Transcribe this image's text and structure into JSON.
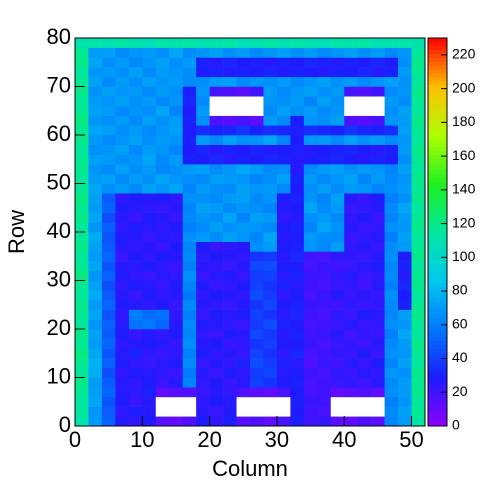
{
  "chart_data": {
    "type": "heatmap",
    "xlabel": "Column",
    "ylabel": "Row",
    "xlim": [
      0,
      52
    ],
    "ylim": [
      0,
      80
    ],
    "xticks": [
      0,
      10,
      20,
      30,
      40,
      50
    ],
    "yticks": [
      0,
      10,
      20,
      30,
      40,
      50,
      60,
      70,
      80
    ],
    "zlim": [
      0,
      230
    ],
    "zticks": [
      0,
      20,
      40,
      60,
      80,
      100,
      120,
      140,
      160,
      180,
      200,
      220
    ],
    "colorscale": [
      "#9000ff",
      "#1c1cff",
      "#0078ff",
      "#00c8f0",
      "#00e8a0",
      "#20f020",
      "#b0ff00",
      "#ffc000",
      "#ff0000"
    ],
    "xbins": [
      0,
      2,
      4,
      6,
      8,
      10,
      12,
      14,
      16,
      18,
      20,
      22,
      24,
      26,
      28,
      30,
      32,
      34,
      36,
      38,
      40,
      42,
      44,
      46,
      48,
      50,
      52
    ],
    "ybins": [
      0,
      2,
      4,
      6,
      8,
      10,
      12,
      14,
      16,
      18,
      20,
      22,
      24,
      26,
      28,
      30,
      32,
      34,
      36,
      38,
      40,
      42,
      44,
      46,
      48,
      50,
      52,
      54,
      56,
      58,
      60,
      62,
      64,
      66,
      68,
      70,
      72,
      74,
      76,
      78,
      80
    ],
    "z": [
      [
        112,
        70,
        50,
        26,
        24,
        28,
        14,
        12,
        16,
        28,
        24,
        30,
        14,
        16,
        12,
        18,
        30,
        20,
        22,
        14,
        12,
        16,
        14,
        62,
        70,
        114
      ],
      [
        116,
        68,
        48,
        24,
        28,
        26,
        0,
        0,
        0,
        26,
        22,
        28,
        0,
        0,
        0,
        0,
        28,
        20,
        18,
        0,
        0,
        0,
        0,
        64,
        72,
        118
      ],
      [
        114,
        74,
        46,
        28,
        22,
        26,
        0,
        0,
        0,
        24,
        28,
        26,
        0,
        0,
        0,
        0,
        30,
        22,
        20,
        0,
        0,
        0,
        0,
        60,
        68,
        116
      ],
      [
        118,
        72,
        52,
        26,
        24,
        30,
        12,
        14,
        16,
        22,
        26,
        24,
        16,
        14,
        12,
        18,
        28,
        18,
        20,
        12,
        14,
        16,
        12,
        66,
        70,
        120
      ],
      [
        120,
        70,
        48,
        26,
        24,
        28,
        22,
        26,
        62,
        24,
        28,
        22,
        26,
        40,
        36,
        28,
        30,
        18,
        20,
        22,
        24,
        20,
        26,
        64,
        70,
        118
      ],
      [
        116,
        76,
        44,
        24,
        28,
        26,
        24,
        22,
        58,
        26,
        22,
        28,
        24,
        38,
        42,
        26,
        28,
        20,
        18,
        24,
        22,
        26,
        24,
        68,
        66,
        120
      ],
      [
        118,
        78,
        50,
        28,
        24,
        22,
        26,
        28,
        64,
        22,
        26,
        24,
        30,
        44,
        38,
        30,
        26,
        16,
        22,
        20,
        26,
        22,
        28,
        62,
        72,
        116
      ],
      [
        122,
        74,
        46,
        26,
        30,
        24,
        22,
        24,
        60,
        28,
        24,
        26,
        22,
        40,
        36,
        24,
        32,
        18,
        20,
        24,
        22,
        28,
        22,
        66,
        68,
        118
      ],
      [
        118,
        70,
        52,
        24,
        26,
        28,
        26,
        22,
        66,
        26,
        28,
        22,
        24,
        36,
        40,
        28,
        28,
        22,
        18,
        22,
        24,
        20,
        26,
        64,
        70,
        120
      ],
      [
        120,
        72,
        48,
        28,
        22,
        26,
        24,
        28,
        62,
        24,
        22,
        28,
        26,
        42,
        38,
        26,
        30,
        20,
        22,
        26,
        20,
        24,
        22,
        60,
        74,
        116
      ],
      [
        116,
        68,
        50,
        26,
        56,
        58,
        52,
        26,
        64,
        28,
        26,
        24,
        22,
        38,
        44,
        30,
        28,
        18,
        20,
        22,
        26,
        22,
        24,
        66,
        68,
        118
      ],
      [
        118,
        74,
        46,
        24,
        60,
        54,
        56,
        24,
        60,
        22,
        28,
        26,
        28,
        40,
        36,
        26,
        32,
        20,
        18,
        24,
        22,
        28,
        26,
        62,
        72,
        120
      ],
      [
        120,
        70,
        52,
        28,
        26,
        24,
        28,
        22,
        64,
        26,
        24,
        22,
        26,
        36,
        42,
        28,
        30,
        22,
        20,
        20,
        24,
        22,
        24,
        64,
        30,
        118
      ],
      [
        116,
        76,
        48,
        26,
        22,
        28,
        24,
        26,
        58,
        24,
        28,
        26,
        24,
        44,
        38,
        24,
        28,
        18,
        22,
        26,
        22,
        26,
        22,
        66,
        28,
        116
      ],
      [
        118,
        72,
        44,
        24,
        28,
        26,
        22,
        28,
        62,
        28,
        22,
        24,
        28,
        40,
        36,
        30,
        26,
        20,
        18,
        22,
        24,
        20,
        26,
        60,
        32,
        120
      ],
      [
        122,
        68,
        50,
        28,
        24,
        22,
        26,
        24,
        66,
        22,
        26,
        28,
        22,
        38,
        40,
        26,
        30,
        22,
        20,
        24,
        26,
        22,
        24,
        64,
        26,
        118
      ],
      [
        118,
        74,
        46,
        26,
        26,
        28,
        24,
        22,
        60,
        26,
        24,
        22,
        26,
        42,
        44,
        28,
        28,
        18,
        22,
        20,
        22,
        26,
        28,
        62,
        30,
        116
      ],
      [
        116,
        70,
        52,
        22,
        28,
        24,
        28,
        26,
        64,
        24,
        28,
        26,
        24,
        36,
        38,
        26,
        32,
        20,
        18,
        24,
        24,
        22,
        26,
        66,
        28,
        120
      ],
      [
        120,
        72,
        48,
        26,
        24,
        26,
        22,
        28,
        62,
        28,
        22,
        24,
        26,
        66,
        70,
        28,
        30,
        68,
        64,
        72,
        24,
        26,
        22,
        64,
        70,
        118
      ],
      [
        118,
        76,
        46,
        28,
        26,
        22,
        26,
        24,
        66,
        70,
        64,
        72,
        68,
        62,
        74,
        26,
        28,
        70,
        66,
        64,
        22,
        24,
        26,
        60,
        72,
        116
      ],
      [
        116,
        68,
        50,
        24,
        28,
        26,
        24,
        28,
        60,
        64,
        72,
        66,
        70,
        68,
        64,
        28,
        30,
        62,
        74,
        68,
        26,
        22,
        24,
        66,
        68,
        120
      ],
      [
        120,
        74,
        44,
        26,
        22,
        28,
        26,
        22,
        64,
        68,
        66,
        74,
        62,
        72,
        70,
        24,
        26,
        66,
        70,
        64,
        24,
        28,
        22,
        62,
        70,
        118
      ],
      [
        118,
        70,
        52,
        28,
        26,
        24,
        22,
        26,
        62,
        72,
        70,
        64,
        68,
        66,
        62,
        26,
        28,
        74,
        64,
        70,
        22,
        24,
        26,
        64,
        74,
        116
      ],
      [
        122,
        72,
        48,
        24,
        28,
        26,
        28,
        24,
        66,
        66,
        64,
        70,
        72,
        64,
        68,
        28,
        30,
        68,
        62,
        72,
        26,
        22,
        28,
        60,
        66,
        120
      ],
      [
        118,
        74,
        66,
        70,
        64,
        72,
        68,
        74,
        62,
        70,
        66,
        64,
        72,
        68,
        70,
        64,
        28,
        66,
        72,
        64,
        70,
        68,
        62,
        66,
        70,
        118
      ],
      [
        116,
        70,
        72,
        64,
        70,
        66,
        74,
        68,
        66,
        64,
        72,
        70,
        68,
        62,
        66,
        72,
        30,
        70,
        64,
        68,
        74,
        62,
        70,
        64,
        68,
        120
      ],
      [
        120,
        68,
        64,
        72,
        66,
        70,
        62,
        66,
        70,
        72,
        64,
        68,
        74,
        70,
        64,
        66,
        26,
        64,
        70,
        72,
        66,
        70,
        68,
        62,
        72,
        116
      ],
      [
        118,
        72,
        70,
        66,
        68,
        74,
        64,
        70,
        30,
        28,
        32,
        26,
        30,
        28,
        32,
        30,
        26,
        28,
        30,
        32,
        28,
        26,
        30,
        28,
        66,
        118
      ],
      [
        116,
        66,
        68,
        72,
        64,
        70,
        68,
        62,
        28,
        32,
        26,
        30,
        28,
        32,
        26,
        28,
        30,
        26,
        28,
        30,
        32,
        28,
        26,
        30,
        70,
        120
      ],
      [
        120,
        70,
        64,
        68,
        72,
        66,
        70,
        68,
        30,
        70,
        64,
        72,
        66,
        68,
        74,
        62,
        28,
        68,
        70,
        64,
        72,
        66,
        70,
        64,
        68,
        116
      ],
      [
        118,
        74,
        72,
        66,
        70,
        64,
        68,
        72,
        28,
        34,
        30,
        32,
        36,
        30,
        34,
        32,
        30,
        34,
        32,
        30,
        36,
        32,
        30,
        34,
        72,
        118
      ],
      [
        122,
        68,
        66,
        70,
        64,
        72,
        66,
        70,
        30,
        66,
        16,
        14,
        18,
        12,
        70,
        64,
        28,
        68,
        66,
        72,
        16,
        14,
        18,
        68,
        70,
        120
      ],
      [
        118,
        72,
        70,
        64,
        68,
        66,
        74,
        62,
        28,
        70,
        0,
        0,
        0,
        0,
        64,
        72,
        66,
        70,
        64,
        68,
        0,
        0,
        0,
        66,
        72,
        116
      ],
      [
        116,
        70,
        68,
        72,
        66,
        70,
        64,
        68,
        32,
        64,
        0,
        0,
        0,
        0,
        68,
        66,
        70,
        62,
        72,
        66,
        0,
        0,
        0,
        70,
        64,
        118
      ],
      [
        120,
        66,
        72,
        68,
        70,
        64,
        70,
        66,
        30,
        68,
        18,
        16,
        14,
        20,
        70,
        64,
        68,
        72,
        66,
        70,
        18,
        16,
        20,
        64,
        68,
        120
      ],
      [
        118,
        72,
        64,
        70,
        66,
        72,
        68,
        70,
        64,
        66,
        70,
        72,
        64,
        68,
        66,
        70,
        64,
        68,
        72,
        66,
        70,
        64,
        68,
        72,
        66,
        116
      ],
      [
        116,
        68,
        70,
        66,
        72,
        64,
        70,
        68,
        66,
        28,
        30,
        26,
        30,
        28,
        32,
        26,
        30,
        28,
        26,
        30,
        28,
        32,
        26,
        30,
        70,
        118
      ],
      [
        120,
        74,
        66,
        70,
        64,
        68,
        72,
        66,
        70,
        30,
        26,
        32,
        28,
        30,
        26,
        30,
        28,
        32,
        30,
        26,
        30,
        28,
        32,
        28,
        66,
        120
      ],
      [
        118,
        70,
        72,
        64,
        68,
        70,
        66,
        74,
        64,
        68,
        72,
        66,
        70,
        64,
        68,
        72,
        66,
        70,
        64,
        68,
        72,
        66,
        70,
        64,
        68,
        116
      ],
      [
        110,
        112,
        108,
        114,
        110,
        106,
        112,
        110,
        114,
        108,
        110,
        112,
        106,
        110,
        114,
        108,
        112,
        110,
        106,
        112,
        110,
        114,
        108,
        110,
        112,
        110
      ]
    ]
  }
}
